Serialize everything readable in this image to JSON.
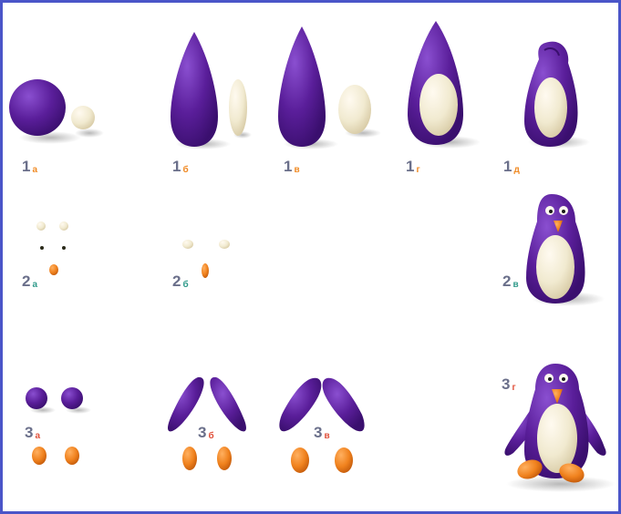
{
  "colors": {
    "frame": "#4a55c8",
    "plasticine_purple": "#5a1e9a",
    "plasticine_cream": "#f1ead0",
    "plasticine_orange": "#f0821e",
    "label_number": "#6a6f8a",
    "sublabel_orange": "#f08a24",
    "sublabel_teal": "#2f9a8a",
    "sublabel_red": "#e0503a"
  },
  "step_labels": {
    "s1a": {
      "num": "1",
      "sub": "а"
    },
    "s1b": {
      "num": "1",
      "sub": "б"
    },
    "s1v": {
      "num": "1",
      "sub": "в"
    },
    "s1g": {
      "num": "1",
      "sub": "г"
    },
    "s1d": {
      "num": "1",
      "sub": "д"
    },
    "s2a": {
      "num": "2",
      "sub": "а"
    },
    "s2b": {
      "num": "2",
      "sub": "б"
    },
    "s2v": {
      "num": "2",
      "sub": "в"
    },
    "s3a": {
      "num": "3",
      "sub": "а"
    },
    "s3b": {
      "num": "3",
      "sub": "б"
    },
    "s3v": {
      "num": "3",
      "sub": "в"
    },
    "s3g": {
      "num": "3",
      "sub": "г"
    }
  },
  "illustration": {
    "subject": "step-by-step plasticine penguin modeling guide",
    "parts": [
      "purple-ball",
      "cream-ball",
      "purple-teardrop-body",
      "cream-oval-belly",
      "eye-balls",
      "pupils",
      "orange-beak",
      "purple-wings",
      "orange-feet",
      "finished-penguin"
    ]
  }
}
